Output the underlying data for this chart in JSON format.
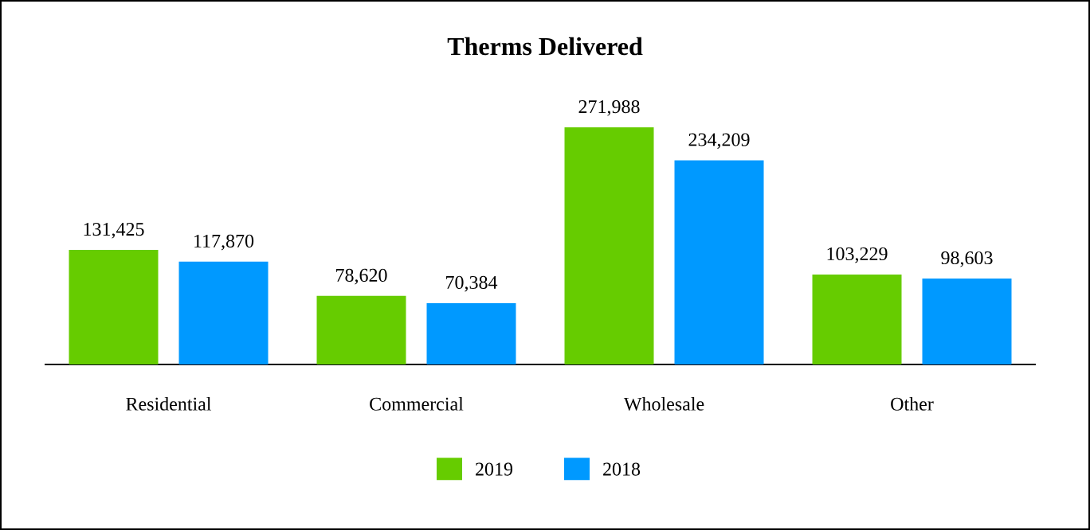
{
  "chart_data": {
    "type": "bar",
    "title": "Therms Delivered",
    "categories": [
      "Residential",
      "Commercial",
      "Wholesale",
      "Other"
    ],
    "series": [
      {
        "name": "2019",
        "color": "#66cc00",
        "values": [
          131425,
          78620,
          271988,
          103229
        ],
        "value_labels": [
          "131,425",
          "78,620",
          "271,988",
          "103,229"
        ]
      },
      {
        "name": "2018",
        "color": "#0099ff",
        "values": [
          117870,
          70384,
          234209,
          98603
        ],
        "value_labels": [
          "117,870",
          "70,384",
          "234,209",
          "98,603"
        ]
      }
    ],
    "legend": "bottom"
  }
}
